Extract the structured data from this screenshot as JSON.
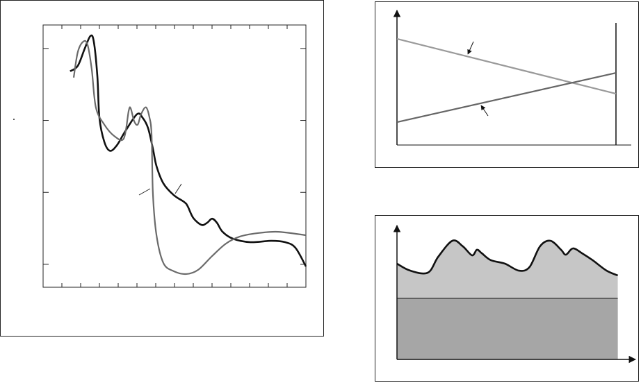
{
  "chart_data": [
    {
      "type": "line",
      "log_y": true,
      "color_frame": "#222",
      "xlim": [
        0,
        14
      ],
      "xticks": [
        1,
        2,
        3,
        4,
        5,
        6,
        7,
        8,
        9,
        10,
        11,
        12,
        13
      ],
      "ylim": [
        0.00048,
        2.12
      ],
      "yticks": [
        0.001,
        0.01,
        0.1,
        1
      ],
      "series": [
        {
          "color": "#111111",
          "x": [
            1.44,
            1.85,
            2.22,
            2.52,
            2.7,
            2.89,
            3.0,
            3.26,
            3.56,
            3.93,
            4.37,
            5.0,
            5.3,
            5.59,
            5.85,
            6.04,
            6.41,
            6.96,
            7.52,
            7.7,
            8.0,
            8.44,
            8.74,
            9.0,
            9.26,
            9.56,
            10.11,
            11.04,
            12.15,
            12.89,
            13.44,
            14
          ],
          "values": [
            0.482,
            0.575,
            1,
            1.49,
            1.25,
            0.412,
            0.109,
            0.0504,
            0.0378,
            0.0451,
            0.0702,
            0.122,
            0.109,
            0.0784,
            0.0404,
            0.0232,
            0.0133,
            0.00916,
            0.00733,
            0.00643,
            0.00441,
            0.00353,
            0.00378,
            0.00431,
            0.00378,
            0.00283,
            0.00227,
            0.00203,
            0.00212,
            0.00203,
            0.0017,
            0.000935
          ]
        },
        {
          "color": "#6a6a6a",
          "x": [
            1.63,
            1.85,
            2.15,
            2.37,
            2.59,
            2.81,
            3.26,
            3.81,
            4.3,
            4.56,
            4.67,
            4.85,
            5.04,
            5.22,
            5.48,
            5.67,
            5.78,
            5.85,
            6.04,
            6.41,
            6.96,
            7.63,
            8.26,
            9.0,
            9.74,
            10.48,
            11.41,
            12.52,
            14
          ],
          "values": [
            0.394,
            0.895,
            1.25,
            1.12,
            0.515,
            0.152,
            0.0875,
            0.0601,
            0.0562,
            0.136,
            0.146,
            0.0978,
            0.0875,
            0.122,
            0.152,
            0.109,
            0.0628,
            0.00957,
            0.00254,
            0.00104,
            0.000802,
            0.000733,
            0.000838,
            0.0013,
            0.00194,
            0.00243,
            0.00271,
            0.00283,
            0.00254
          ]
        }
      ]
    },
    {
      "type": "line",
      "log_y": false,
      "xlim": [
        0,
        1.07
      ],
      "ylim": [
        0,
        1
      ],
      "series": [
        {
          "color": "#9a9a9a",
          "x": [
            0,
            1
          ],
          "values": [
            0.789,
            0.381
          ]
        },
        {
          "color": "#666666",
          "x": [
            0,
            1
          ],
          "values": [
            0.17,
            0.536
          ]
        }
      ]
    },
    {
      "type": "area",
      "log_y": false,
      "xlim": [
        0,
        1.08
      ],
      "ylim": [
        0,
        1
      ],
      "x": [
        0,
        0.06,
        0.14,
        0.187,
        0.251,
        0.298,
        0.34,
        0.362,
        0.384,
        0.425,
        0.489,
        0.552,
        0.6,
        0.648,
        0.695,
        0.743,
        0.765,
        0.797,
        0.838,
        0.886,
        0.949,
        1
      ],
      "series": [
        {
          "color": "#c6c6c6",
          "values": [
            0.715,
            0.663,
            0.648,
            0.767,
            0.886,
            0.845,
            0.777,
            0.819,
            0.793,
            0.741,
            0.715,
            0.663,
            0.689,
            0.845,
            0.886,
            0.819,
            0.782,
            0.829,
            0.793,
            0.741,
            0.663,
            0.627
          ]
        },
        {
          "color": "#a6a6a6",
          "values": [
            0.456,
            0.456,
            0.456,
            0.456,
            0.456,
            0.456,
            0.456,
            0.456,
            0.456,
            0.456,
            0.456,
            0.456,
            0.456,
            0.456,
            0.456,
            0.456,
            0.456,
            0.456,
            0.456,
            0.456,
            0.456,
            0.456
          ]
        }
      ]
    }
  ]
}
